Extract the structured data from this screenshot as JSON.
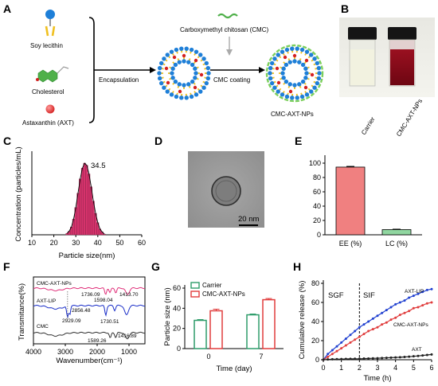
{
  "panels": {
    "A": "A",
    "B": "B",
    "C": "C",
    "D": "D",
    "E": "E",
    "F": "F",
    "G": "G",
    "H": "H"
  },
  "schematic": {
    "soy_lecithin": "Soy lecithin",
    "cholesterol": "Cholesterol",
    "astaxanthin": "Astaxanthin (AXT)",
    "encapsulation": "Encapsulation",
    "cmc_name": "Carboxymethyl chitosan (CMC)",
    "cmc_coating": "CMC coating",
    "product": "CMC-AXT-NPs"
  },
  "vials": {
    "left": "Carrier",
    "right": "CMC-AXT-NPs"
  },
  "tem": {
    "scale_bar": "20 nm"
  },
  "colors": {
    "hist_fill": "#d6336c",
    "ee_bar": "#f08080",
    "lc_bar": "#90d6a0",
    "carrier": "#2e9c6a",
    "cmc_axt": "#e03c3c",
    "lip": "#2040d0",
    "axt": "#222222",
    "ftir_cmc_axt": "#e0307a",
    "ftir_lip": "#1a2ec8",
    "ftir_cmc": "#333333"
  },
  "chart_data": [
    {
      "panel": "C",
      "type": "bar",
      "xlabel": "Particle size(nm)",
      "ylabel": "Concentration (particles/mL)",
      "xlim": [
        10,
        60
      ],
      "xticks": [
        10,
        20,
        30,
        40,
        50,
        60
      ],
      "peak_label": "34.5",
      "x": [
        26,
        27,
        28,
        29,
        30,
        31,
        32,
        33,
        34,
        35,
        36,
        37,
        38,
        39,
        40,
        41,
        42,
        43
      ],
      "values": [
        0.02,
        0.05,
        0.11,
        0.22,
        0.38,
        0.58,
        0.78,
        0.93,
        1.0,
        0.97,
        0.85,
        0.67,
        0.47,
        0.3,
        0.17,
        0.08,
        0.04,
        0.01
      ]
    },
    {
      "panel": "E",
      "type": "bar",
      "categories": [
        "EE (%)",
        "LC (%)"
      ],
      "values": [
        94.5,
        7.2
      ],
      "errors": [
        1.0,
        0.6
      ],
      "ylim": [
        0,
        100
      ],
      "yticks": [
        0,
        20,
        40,
        60,
        80,
        100
      ]
    },
    {
      "panel": "F",
      "type": "line",
      "xlabel": "Wavenumber(cm⁻¹)",
      "ylabel": "Transmitance(%)",
      "xlim": [
        4000,
        500
      ],
      "xticks": [
        4000,
        3000,
        2000,
        1000
      ],
      "series": [
        {
          "name": "CMC-AXT-NPs",
          "labels": [
            "1736.09",
            "1598.04",
            "1413.70"
          ]
        },
        {
          "name": "AXT-LIP",
          "labels": [
            "2856.48",
            "2929.09",
            "1730.51"
          ]
        },
        {
          "name": "CMC",
          "labels": [
            "1589.26",
            "1416.89"
          ]
        }
      ]
    },
    {
      "panel": "G",
      "type": "bar",
      "categories": [
        "0",
        "7"
      ],
      "xlabel": "Time (day)",
      "ylabel": "Particle size (nm)",
      "ylim": [
        0,
        60
      ],
      "yticks": [
        0,
        20,
        40,
        60
      ],
      "series": [
        {
          "name": "Carrier",
          "values": [
            28,
            33.5
          ],
          "errors": [
            0.8,
            0.8
          ]
        },
        {
          "name": "CMC-AXT-NPs",
          "values": [
            37.5,
            48.5
          ],
          "errors": [
            1.6,
            1.2
          ]
        }
      ]
    },
    {
      "panel": "H",
      "type": "line",
      "xlabel": "Time (h)",
      "ylabel": "Cumulative release (%)",
      "xlim": [
        0,
        6
      ],
      "ylim": [
        0,
        80
      ],
      "xticks": [
        0,
        1,
        2,
        3,
        4,
        5,
        6
      ],
      "yticks": [
        0,
        20,
        40,
        60,
        80
      ],
      "annotations": [
        "SGF",
        "SIF"
      ],
      "divider_x": 2,
      "x": [
        0,
        0.25,
        0.5,
        0.75,
        1,
        1.25,
        1.5,
        1.75,
        2,
        2.25,
        2.5,
        2.75,
        3,
        3.25,
        3.5,
        3.75,
        4,
        4.25,
        4.5,
        4.75,
        5,
        5.25,
        5.5,
        5.75,
        6
      ],
      "series": [
        {
          "name": "AXT-LIP",
          "values": [
            0,
            6,
            10,
            14,
            18,
            22,
            26,
            30,
            34,
            37,
            40,
            43,
            46,
            49,
            52,
            55,
            58,
            60,
            62,
            65,
            67,
            69,
            71,
            73,
            74
          ]
        },
        {
          "name": "CMC-AXT-NPs",
          "values": [
            0,
            3,
            6,
            9,
            12,
            15,
            18,
            21,
            24,
            27,
            30,
            32,
            34,
            37,
            39,
            42,
            44,
            47,
            49,
            51,
            54,
            55,
            57,
            59,
            60
          ]
        },
        {
          "name": "AXT",
          "values": [
            0,
            0.3,
            0.5,
            0.6,
            0.7,
            0.8,
            0.9,
            1,
            1,
            1.2,
            1.3,
            1.5,
            1.6,
            1.8,
            2,
            2.2,
            2.4,
            2.6,
            2.9,
            3.2,
            3.6,
            4,
            4.5,
            5,
            5.5
          ]
        }
      ]
    }
  ]
}
